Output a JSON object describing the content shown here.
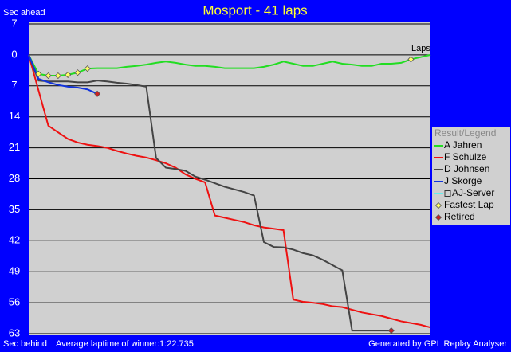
{
  "chart_data": {
    "type": "line",
    "title": "Mosport - 41 laps",
    "top_left_label": "Sec ahead",
    "bottom_left_label": "Sec behind",
    "footer_center": "Average laptime of winner:1:22.735",
    "footer_right": "Generated by GPL Replay Analyser",
    "x_label": "Laps",
    "legend_title": "Result/Legend",
    "xlim": [
      0,
      41
    ],
    "ylim": [
      -7,
      63
    ],
    "y_inverted": true,
    "yticks": [
      {
        "value": -7,
        "label": "7"
      },
      0,
      7,
      14,
      21,
      28,
      35,
      42,
      49,
      56,
      63
    ],
    "grid": true,
    "x": [
      0,
      1,
      2,
      3,
      4,
      5,
      6,
      7,
      8,
      9,
      10,
      11,
      12,
      13,
      14,
      15,
      16,
      17,
      18,
      19,
      20,
      21,
      22,
      23,
      24,
      25,
      26,
      27,
      28,
      29,
      30,
      31,
      32,
      33,
      34,
      35,
      36,
      37,
      38,
      39,
      40,
      41
    ],
    "series": [
      {
        "name": "A Jahren",
        "color": "#22dd22",
        "values": [
          0,
          4.3,
          4.7,
          4.7,
          4.5,
          4,
          3.1,
          3,
          3,
          3,
          2.7,
          2.5,
          2.2,
          1.8,
          1.5,
          1.8,
          2.2,
          2.5,
          2.5,
          2.7,
          3,
          3,
          3,
          3,
          2.7,
          2.2,
          1.5,
          2,
          2.5,
          2.5,
          2,
          1.5,
          2,
          2.2,
          2.5,
          2.5,
          2,
          2,
          1.8,
          1,
          0.5,
          0
        ]
      },
      {
        "name": "F Schulze",
        "color": "#ee1111",
        "values": [
          0,
          8,
          16,
          17.5,
          19,
          19.8,
          20.3,
          20.6,
          21,
          21.7,
          22.3,
          22.8,
          23.2,
          23.8,
          24.5,
          25.5,
          27,
          28,
          28.8,
          36.3,
          36.8,
          37.3,
          37.8,
          38.5,
          39,
          39.3,
          39.6,
          55.3,
          55.8,
          56,
          56.3,
          56.8,
          57,
          57.6,
          58.2,
          58.6,
          59,
          59.6,
          60.2,
          60.6,
          61,
          61.6
        ]
      },
      {
        "name": "D Johnsen",
        "color": "#444444",
        "values": [
          0,
          5.8,
          6,
          6,
          6,
          6.2,
          6.2,
          5.8,
          6,
          6.3,
          6.5,
          6.8,
          7.2,
          23.3,
          25.5,
          25.8,
          26.2,
          27.5,
          28.2,
          29,
          29.8,
          30.4,
          31,
          31.8,
          42.3,
          43.4,
          43.5,
          44,
          44.8,
          45.3,
          46.3,
          47.5,
          48.7,
          62.3,
          62.3,
          62.3,
          62.3,
          62.3,
          null,
          null,
          null,
          null
        ]
      },
      {
        "name": "J Skorge",
        "color": "#1133dd",
        "values": [
          0,
          5.4,
          6.2,
          6.8,
          7.2,
          7.4,
          7.8,
          8.8,
          null,
          null,
          null,
          null,
          null,
          null,
          null,
          null,
          null,
          null,
          null,
          null,
          null,
          null,
          null,
          null,
          null,
          null,
          null,
          null,
          null,
          null,
          null,
          null,
          null,
          null,
          null,
          null,
          null,
          null,
          null,
          null,
          null,
          null
        ]
      },
      {
        "name": "AJ-Server",
        "color": "#66eeee",
        "values": [
          null,
          null,
          null,
          null,
          null,
          null,
          null,
          null,
          null,
          null,
          null,
          null,
          null,
          null,
          null,
          null,
          null,
          null,
          null,
          null,
          null,
          null,
          null,
          null,
          null,
          null,
          null,
          null,
          null,
          null,
          null,
          null,
          null,
          null,
          null,
          null,
          null,
          null,
          null,
          null,
          null,
          null
        ]
      }
    ],
    "fastest_laps": {
      "name": "Fastest Lap",
      "color": "#ffff66",
      "x": [
        1,
        2,
        3,
        4,
        5,
        6,
        39
      ],
      "values": [
        4.3,
        4.7,
        4.7,
        4.5,
        4,
        3.1,
        1
      ]
    },
    "retired": {
      "name": "Retired",
      "color": "#cc2222",
      "x": [
        7,
        37
      ],
      "values": [
        8.8,
        62.3
      ]
    }
  }
}
